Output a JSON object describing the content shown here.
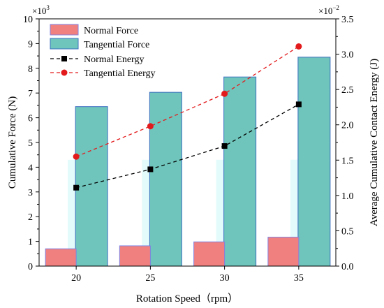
{
  "chart_data": {
    "type": "bar",
    "categories": [
      "20",
      "25",
      "30",
      "35"
    ],
    "xlabel": "Rotation Speed（rpm）",
    "ylabel_left": "Cumulative Force (N)",
    "ylabel_right": "Average Cumulative Contact Energy (J)",
    "left_multiplier": "×10",
    "left_exponent": "3",
    "right_multiplier": "×10",
    "right_exponent": "−2",
    "ylim_left": [
      0,
      10
    ],
    "ylim_right": [
      0,
      3.5
    ],
    "left_ticks": [
      "0",
      "1",
      "2",
      "3",
      "4",
      "5",
      "6",
      "7",
      "8",
      "9",
      "10"
    ],
    "right_ticks": [
      "0.0",
      "0.5",
      "1.0",
      "1.5",
      "2.0",
      "2.5",
      "3.0",
      "3.5"
    ],
    "bar_series": [
      {
        "name": "Normal Force",
        "values": [
          0.7,
          0.82,
          0.98,
          1.17
        ],
        "color": "#f08080",
        "edge": "#8080e0"
      },
      {
        "name": "Tangential Force",
        "values": [
          6.45,
          7.03,
          7.65,
          8.45
        ],
        "color": "#6fc5bb",
        "edge": "#3b6fc0"
      }
    ],
    "line_series": [
      {
        "name": "Normal Energy",
        "values": [
          1.11,
          1.37,
          1.7,
          2.29
        ],
        "color": "#000000",
        "marker": "square"
      },
      {
        "name": "Tangential Energy",
        "values": [
          1.55,
          1.98,
          2.44,
          3.11
        ],
        "color": "#e31a1c",
        "marker": "circle"
      }
    ],
    "legend_position": "top-left",
    "grid": false
  }
}
